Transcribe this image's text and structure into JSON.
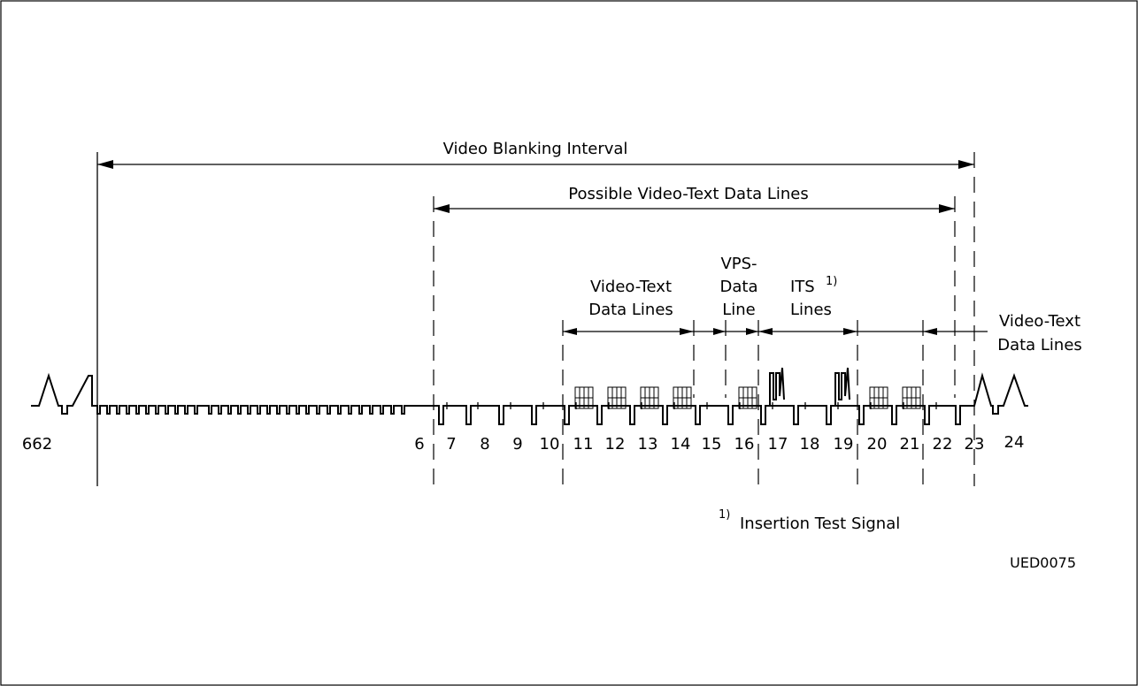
{
  "diagram": {
    "spans": {
      "video_blanking_interval": "Video Blanking Interval",
      "possible_data_lines": "Possible Video-Text Data Lines"
    },
    "groups": {
      "video_text_1": [
        "Video-Text",
        "Data  Lines"
      ],
      "vps": [
        "VPS-",
        "Data",
        "Line"
      ],
      "its": [
        "ITS",
        "Lines"
      ],
      "its_sup": "1)",
      "video_text_2": [
        "Video-Text",
        "Data Lines"
      ]
    },
    "line_numbers": [
      "662",
      "6",
      "7",
      "8",
      "9",
      "10",
      "11",
      "12",
      "13",
      "14",
      "15",
      "16",
      "17",
      "18",
      "19",
      "20",
      "21",
      "22",
      "23",
      "24"
    ],
    "footnote_marker": "1)",
    "footnote_text": "Insertion Test Signal",
    "figure_code": "UED0075"
  }
}
